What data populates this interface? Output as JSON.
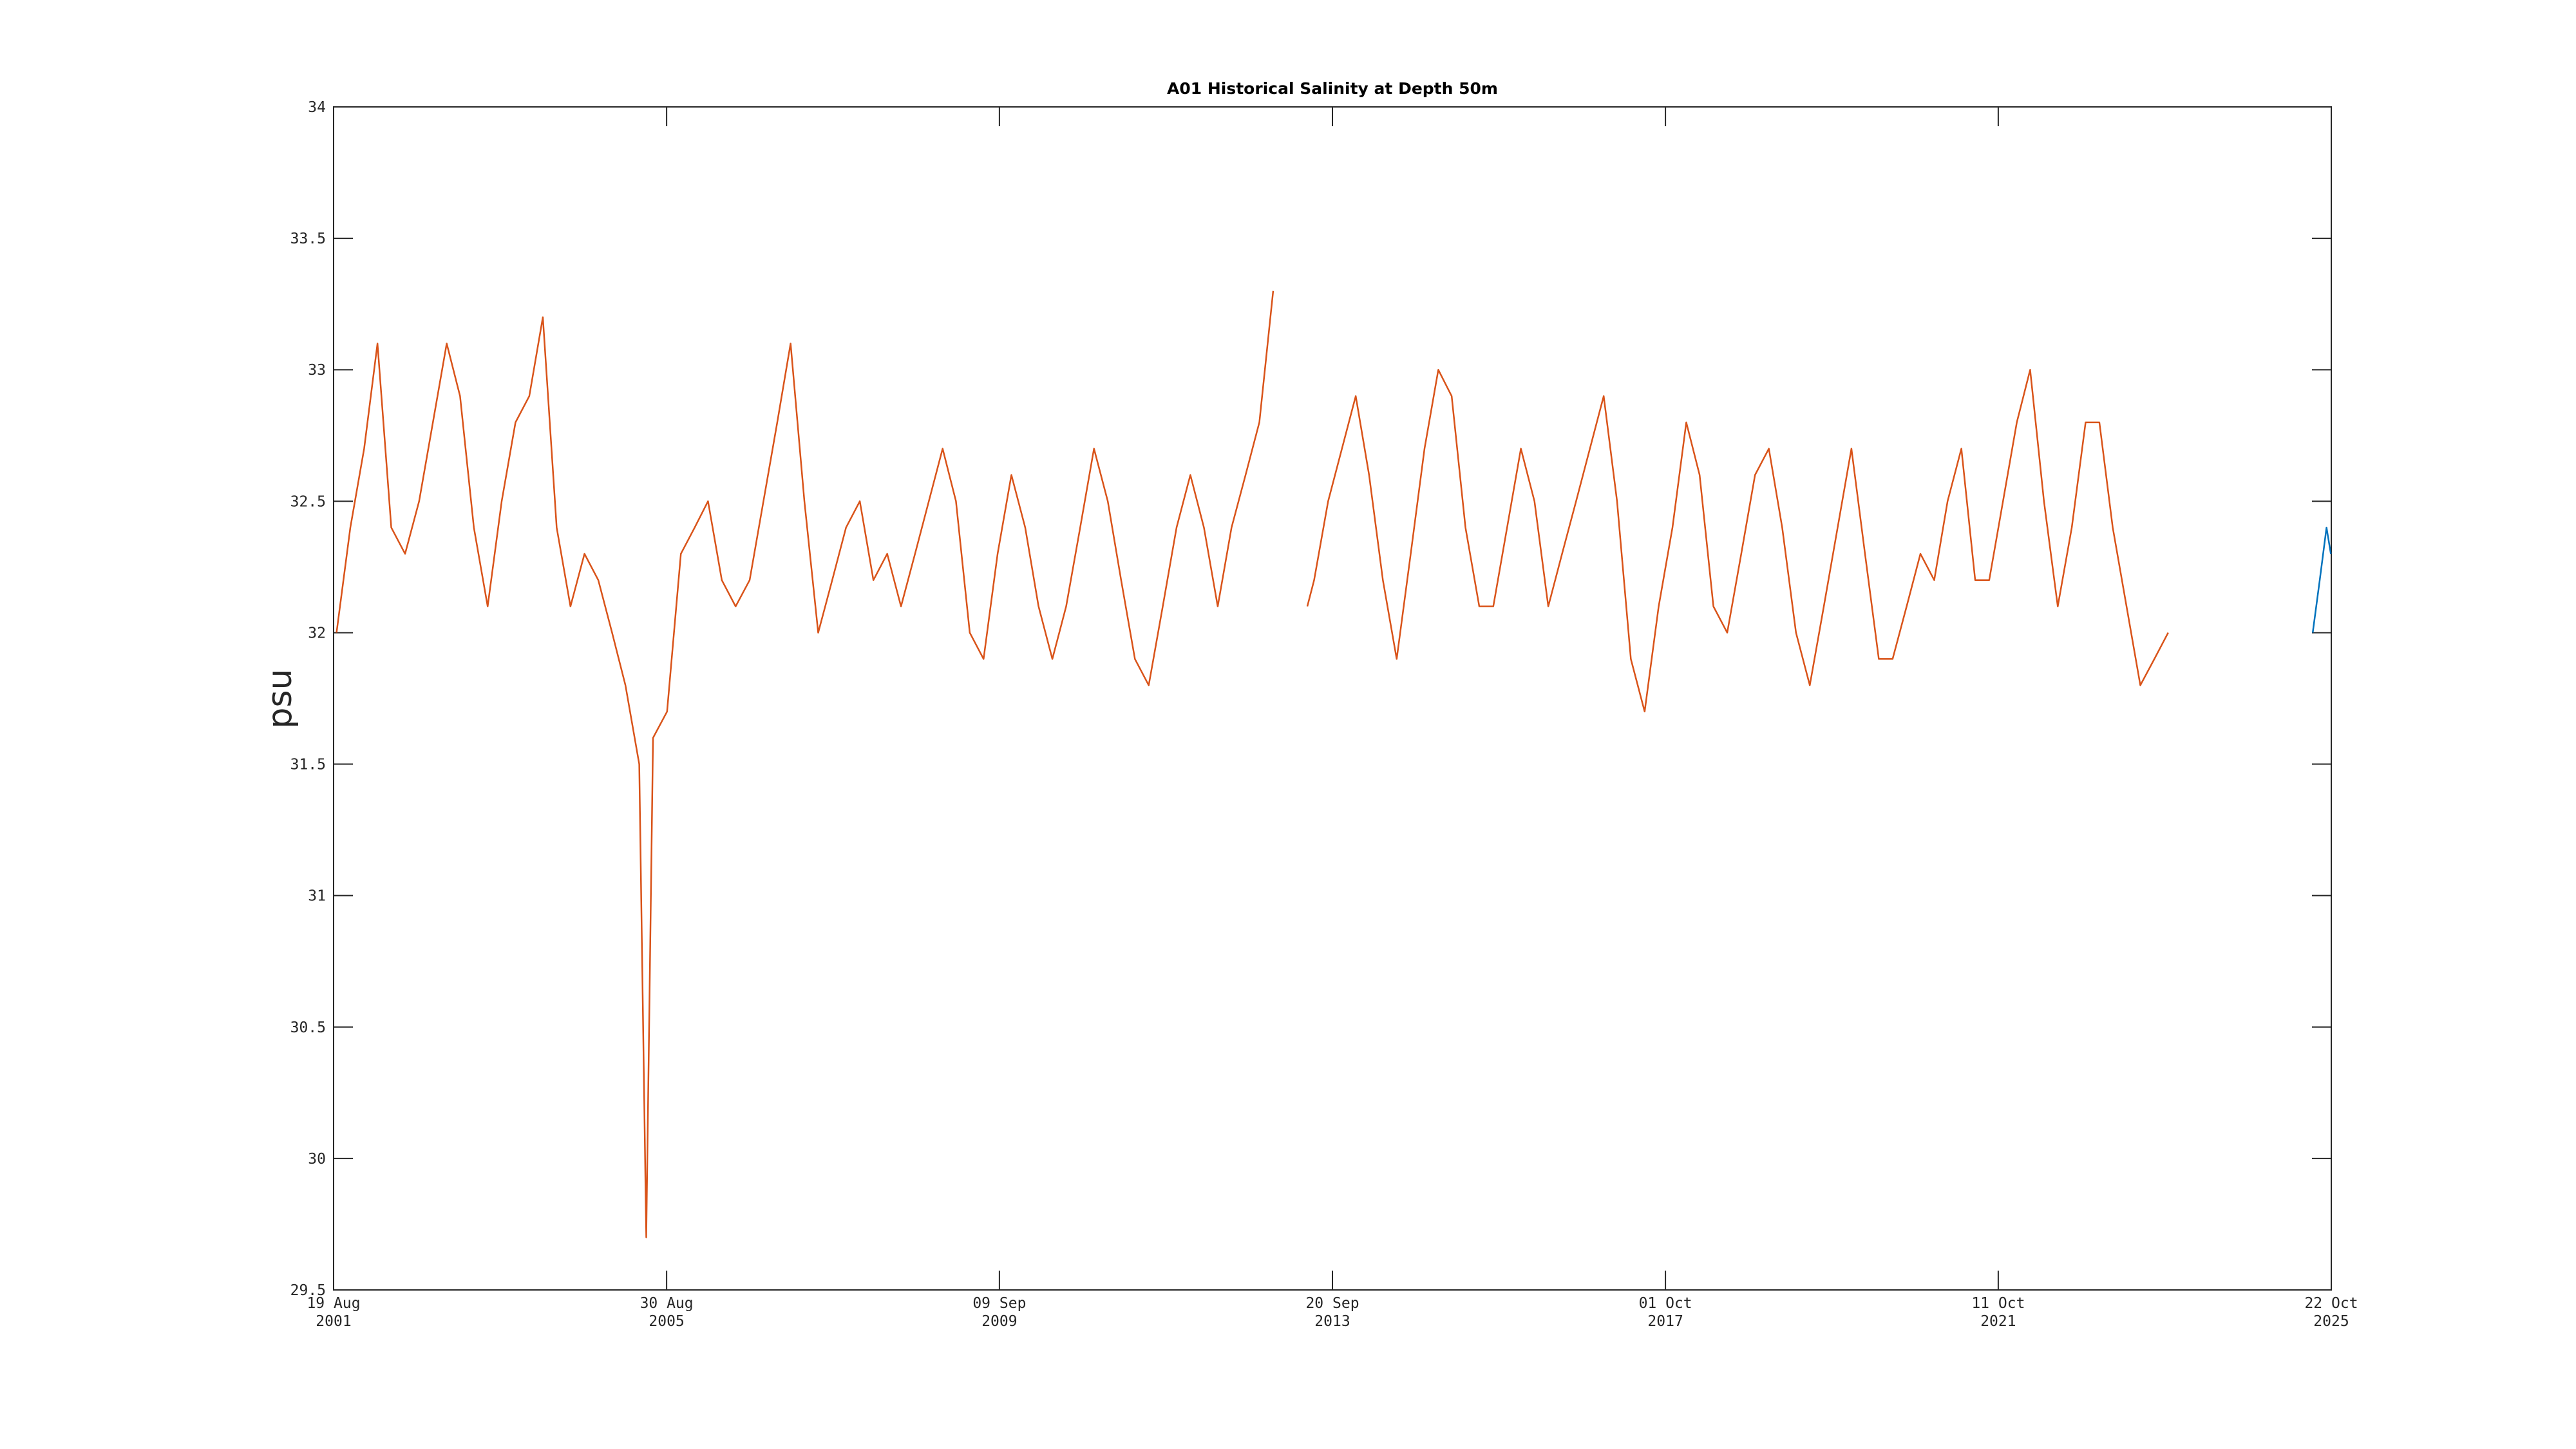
{
  "chart_data": {
    "type": "line",
    "title": "A01 Historical Salinity at Depth 50m",
    "y_label": "psu",
    "xlim": [
      "2001-08-19",
      "2025-10-22"
    ],
    "xticks": [
      {
        "value": "2001-08-19",
        "label": "19 Aug 2001"
      },
      {
        "value": "2005-08-30",
        "label": "30 Aug 2005"
      },
      {
        "value": "2009-09-09",
        "label": "09 Sep 2009"
      },
      {
        "value": "2013-09-20",
        "label": "20 Sep 2013"
      },
      {
        "value": "2017-10-01",
        "label": "01 Oct 2017"
      },
      {
        "value": "2021-10-11",
        "label": "11 Oct 2021"
      },
      {
        "value": "2025-10-22",
        "label": "22 Oct 2025"
      }
    ],
    "ylim": [
      29.5,
      34
    ],
    "yticks": [
      29.5,
      30,
      30.5,
      31,
      31.5,
      32,
      32.5,
      33,
      33.5,
      34
    ],
    "grid": false,
    "series": [
      {
        "color": "#d95319",
        "x": [
          "2001-09-01",
          "2001-11-01",
          "2002-01-01",
          "2002-03-01",
          "2002-05-01",
          "2002-07-01",
          "2002-09-01",
          "2002-11-01",
          "2003-01-01",
          "2003-03-01",
          "2003-05-01",
          "2003-07-01",
          "2003-09-01",
          "2003-11-01",
          "2004-01-01",
          "2004-03-01",
          "2004-05-01",
          "2004-07-01",
          "2004-09-01",
          "2004-11-01",
          "2005-01-01",
          "2005-03-01",
          "2005-05-01",
          "2005-06-01",
          "2005-07-01",
          "2005-09-01",
          "2005-11-01",
          "2006-01-01",
          "2006-03-01",
          "2006-05-01",
          "2006-07-01",
          "2006-09-01",
          "2006-11-01",
          "2007-01-01",
          "2007-03-01",
          "2007-05-01",
          "2007-07-01",
          "2007-09-01",
          "2007-11-01",
          "2008-01-01",
          "2008-03-01",
          "2008-05-01",
          "2008-07-01",
          "2008-09-01",
          "2008-11-01",
          "2009-01-01",
          "2009-03-01",
          "2009-05-01",
          "2009-07-01",
          "2009-09-01",
          "2009-11-01",
          "2010-01-01",
          "2010-03-01",
          "2010-05-01",
          "2010-07-01",
          "2010-09-01",
          "2010-11-01",
          "2011-01-01",
          "2011-03-01",
          "2011-05-01",
          "2011-07-01",
          "2011-09-01",
          "2011-11-01",
          "2012-01-01",
          "2012-03-01",
          "2012-05-01",
          "2012-07-01",
          "2012-09-01",
          "2012-11-01",
          "2013-01-01",
          "2013-03-01",
          "2013-06-01",
          "2013-07-01",
          "2013-09-01",
          "2013-11-01",
          "2014-01-01",
          "2014-03-01",
          "2014-05-01",
          "2014-07-01",
          "2014-09-01",
          "2014-11-01",
          "2015-01-01",
          "2015-03-01",
          "2015-05-01",
          "2015-07-01",
          "2015-09-01",
          "2015-11-01",
          "2016-01-01",
          "2016-03-01",
          "2016-05-01",
          "2016-07-01",
          "2016-09-01",
          "2016-11-01",
          "2017-01-01",
          "2017-03-01",
          "2017-05-01",
          "2017-07-01",
          "2017-09-01",
          "2017-11-01",
          "2018-01-01",
          "2018-03-01",
          "2018-05-01",
          "2018-07-01",
          "2018-09-01",
          "2018-11-01",
          "2019-01-01",
          "2019-03-01",
          "2019-05-01",
          "2019-07-01",
          "2019-09-01",
          "2019-11-01",
          "2020-01-01",
          "2020-03-01",
          "2020-05-01",
          "2020-07-01",
          "2020-09-01",
          "2020-11-01",
          "2021-01-01",
          "2021-03-01",
          "2021-05-01",
          "2021-07-01",
          "2021-09-01",
          "2021-11-01",
          "2022-01-01",
          "2022-03-01",
          "2022-05-01",
          "2022-07-01",
          "2022-09-01",
          "2022-11-01",
          "2023-01-01",
          "2023-03-01",
          "2023-05-01",
          "2023-07-01",
          "2023-09-01",
          "2023-11-01"
        ],
        "values": [
          32.0,
          32.4,
          32.7,
          33.1,
          32.4,
          32.3,
          32.5,
          32.8,
          33.1,
          32.9,
          32.4,
          32.1,
          32.5,
          32.8,
          32.9,
          33.2,
          32.4,
          32.1,
          32.3,
          32.2,
          32.0,
          31.8,
          31.5,
          29.7,
          31.6,
          31.7,
          32.3,
          32.4,
          32.5,
          32.2,
          32.1,
          32.2,
          32.5,
          32.8,
          33.1,
          32.5,
          32.0,
          32.2,
          32.4,
          32.5,
          32.2,
          32.3,
          32.1,
          32.3,
          32.5,
          32.7,
          32.5,
          32.0,
          31.9,
          32.3,
          32.6,
          32.4,
          32.1,
          31.9,
          32.1,
          32.4,
          32.7,
          32.5,
          32.2,
          31.9,
          31.8,
          32.1,
          32.4,
          32.6,
          32.4,
          32.1,
          32.4,
          32.6,
          32.8,
          33.3,
          null,
          32.1,
          32.2,
          32.5,
          32.7,
          32.9,
          32.6,
          32.2,
          31.9,
          32.3,
          32.7,
          33.0,
          32.9,
          32.4,
          32.1,
          32.1,
          32.4,
          32.7,
          32.5,
          32.1,
          32.3,
          32.5,
          32.7,
          32.9,
          32.5,
          31.9,
          31.7,
          32.1,
          32.4,
          32.8,
          32.6,
          32.1,
          32.0,
          32.3,
          32.6,
          32.7,
          32.4,
          32.0,
          31.8,
          32.1,
          32.4,
          32.7,
          32.3,
          31.9,
          31.9,
          32.1,
          32.3,
          32.2,
          32.5,
          32.7,
          32.2,
          32.2,
          32.5,
          32.8,
          33.0,
          32.5,
          32.1,
          32.4,
          32.8,
          32.8,
          32.4,
          32.1,
          31.8,
          31.9,
          32.0
        ]
      },
      {
        "color": "#0072bd",
        "x": [
          "2025-08-01",
          "2025-09-01",
          "2025-10-01",
          "2025-10-20"
        ],
        "values": [
          32.0,
          32.2,
          32.4,
          32.3
        ]
      }
    ]
  }
}
